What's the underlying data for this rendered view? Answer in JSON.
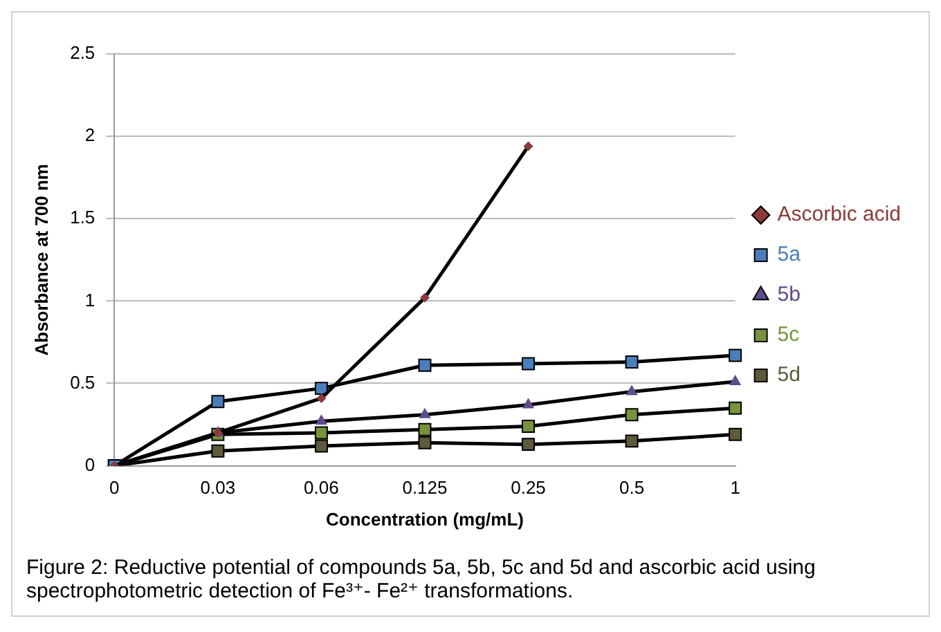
{
  "chart_data": {
    "type": "line",
    "xlabel": "Concentration (mg/mL)",
    "ylabel": "Absorbance at 700 nm",
    "categories": [
      "0",
      "0.03",
      "0.06",
      "0.125",
      "0.25",
      "0.5",
      "1"
    ],
    "series": [
      {
        "name": "Ascorbic acid",
        "color": "#8b3a3a",
        "marker": "diamond",
        "values": [
          0,
          0.2,
          0.41,
          1.02,
          1.94,
          null,
          null
        ]
      },
      {
        "name": "5a",
        "color": "#4a7ebb",
        "marker": "square",
        "values": [
          0,
          0.39,
          0.47,
          0.61,
          0.62,
          0.63,
          0.67
        ]
      },
      {
        "name": "5b",
        "color": "#5f4b8b",
        "marker": "triangle",
        "values": [
          0,
          0.2,
          0.27,
          0.31,
          0.37,
          0.45,
          0.51
        ]
      },
      {
        "name": "5c",
        "color": "#77933c",
        "marker": "square",
        "values": [
          0,
          0.19,
          0.2,
          0.22,
          0.24,
          0.31,
          0.35
        ]
      },
      {
        "name": "5d",
        "color": "#5e5a3c",
        "marker": "square",
        "values": [
          0,
          0.09,
          0.12,
          0.14,
          0.13,
          0.15,
          0.19
        ]
      }
    ],
    "ylim": [
      0,
      2.5
    ],
    "yticks": [
      0,
      0.5,
      1,
      1.5,
      2,
      2.5
    ],
    "grid": "y",
    "legend": "right",
    "annotations": [
      "Figure 2: Reductive potential of compounds 5a, 5b, 5c and 5d and ascorbic acid using spectrophotometric detection of Fe³⁺- Fe²⁺ transformations."
    ]
  }
}
